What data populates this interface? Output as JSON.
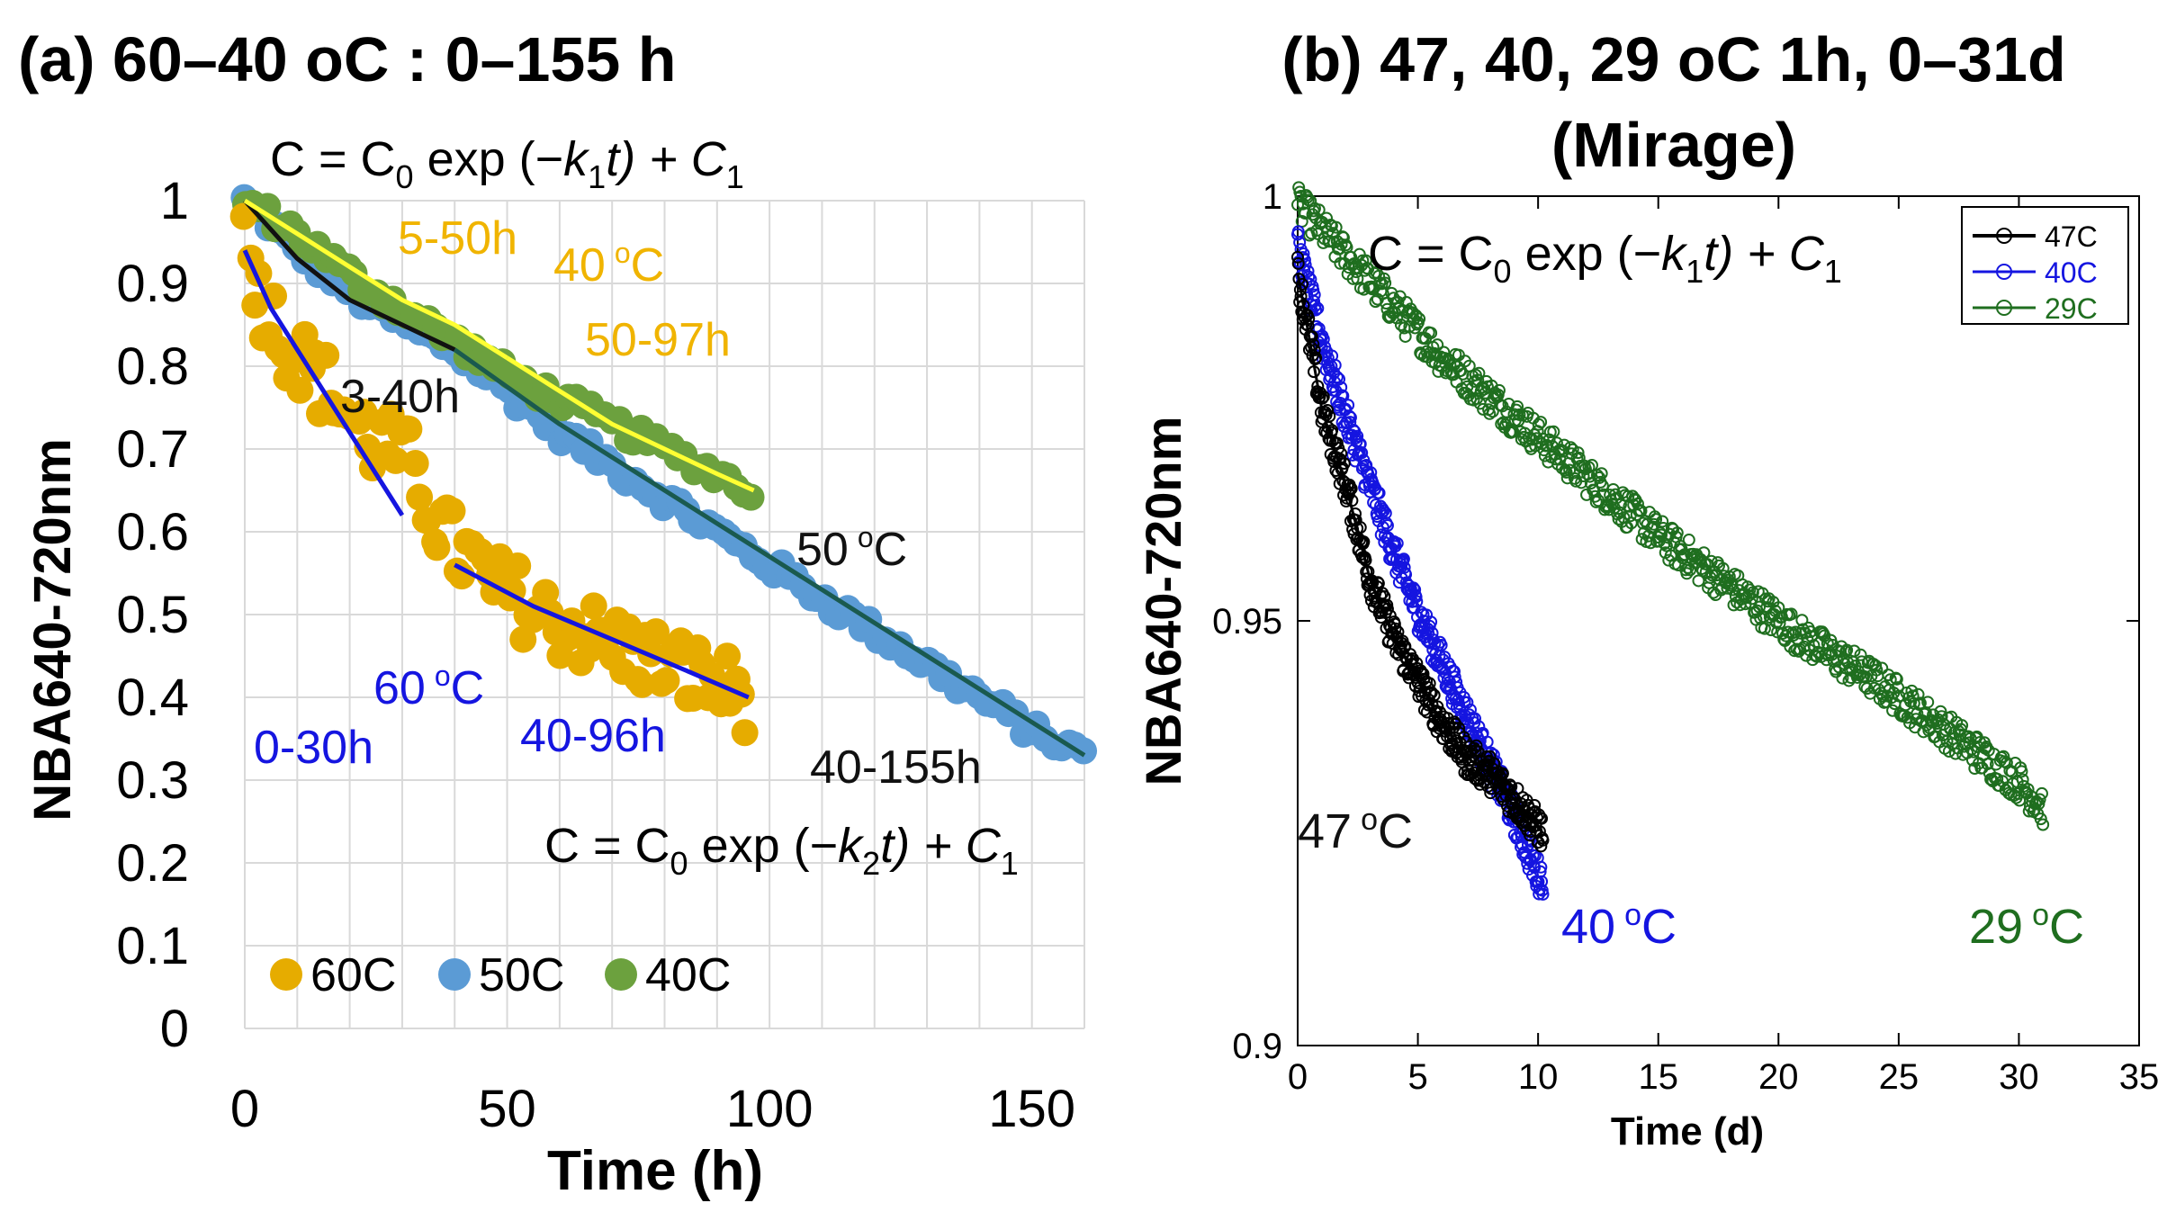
{
  "chart_data": [
    {
      "type": "scatter",
      "title": "(a) 60–40 oC : 0–155 h",
      "xlabel": "Time (h)",
      "ylabel": "NBA640-720nm",
      "xlim": [
        0,
        160
      ],
      "ylim": [
        0,
        1
      ],
      "xticks": [
        "0",
        "50",
        "100",
        "150"
      ],
      "yticks": [
        "0",
        "0.1",
        "0.2",
        "0.3",
        "0.4",
        "0.5",
        "0.6",
        "0.7",
        "0.8",
        "0.9",
        "1"
      ],
      "grid": true,
      "legend_position": "bottom-left",
      "series": [
        {
          "name": "60C",
          "color": "#e6ac00",
          "x": [
            0,
            4,
            8,
            12,
            16,
            20,
            24,
            28,
            32,
            36,
            40,
            44,
            48,
            52,
            56,
            60,
            64,
            68,
            72,
            76,
            80,
            84,
            88,
            92,
            96
          ],
          "y": [
            0.95,
            0.87,
            0.83,
            0.8,
            0.77,
            0.74,
            0.71,
            0.7,
            0.68,
            0.62,
            0.58,
            0.56,
            0.53,
            0.52,
            0.5,
            0.49,
            0.48,
            0.47,
            0.46,
            0.45,
            0.44,
            0.43,
            0.42,
            0.41,
            0.4
          ]
        },
        {
          "name": "50C",
          "color": "#5b9bd5",
          "x": [
            0,
            10,
            20,
            30,
            40,
            50,
            60,
            70,
            80,
            90,
            100,
            110,
            120,
            130,
            140,
            150,
            160
          ],
          "y": [
            1.0,
            0.94,
            0.89,
            0.85,
            0.82,
            0.77,
            0.72,
            0.68,
            0.64,
            0.6,
            0.56,
            0.52,
            0.48,
            0.44,
            0.4,
            0.36,
            0.33
          ]
        },
        {
          "name": "40C",
          "color": "#6ca13e",
          "x": [
            0,
            10,
            20,
            30,
            40,
            50,
            60,
            70,
            80,
            90,
            97
          ],
          "y": [
            1.0,
            0.96,
            0.91,
            0.87,
            0.83,
            0.79,
            0.76,
            0.73,
            0.7,
            0.67,
            0.65
          ]
        }
      ],
      "fits": [
        {
          "label": "0-30h",
          "color": "#1515e0",
          "x": [
            0,
            5,
            10,
            15,
            20,
            25,
            30
          ],
          "y": [
            0.94,
            0.87,
            0.82,
            0.77,
            0.72,
            0.67,
            0.62
          ]
        },
        {
          "label": "40-96h",
          "color": "#1515e0",
          "x": [
            40,
            55,
            70,
            85,
            96
          ],
          "y": [
            0.56,
            0.51,
            0.47,
            0.43,
            0.4
          ]
        },
        {
          "label": "3-40h",
          "color": "#111111",
          "x": [
            0,
            10,
            20,
            30,
            40
          ],
          "y": [
            1.0,
            0.93,
            0.88,
            0.85,
            0.82
          ]
        },
        {
          "label": "40-155h",
          "color": "#1a5a4f",
          "x": [
            40,
            60,
            80,
            100,
            120,
            140,
            160
          ],
          "y": [
            0.82,
            0.73,
            0.65,
            0.57,
            0.49,
            0.41,
            0.33
          ]
        },
        {
          "label": "5-50h",
          "color": "#ffff33",
          "x": [
            0,
            10,
            20,
            30,
            40,
            50
          ],
          "y": [
            1.0,
            0.96,
            0.92,
            0.88,
            0.85,
            0.81
          ]
        },
        {
          "label": "50-97h",
          "color": "#ffff33",
          "x": [
            50,
            60,
            70,
            80,
            90,
            97
          ],
          "y": [
            0.81,
            0.77,
            0.73,
            0.7,
            0.67,
            0.65
          ]
        }
      ],
      "annotations": [
        {
          "text": "C = C",
          "sub": "0",
          "rest": " exp (−",
          "k": "k",
          "ksub": "1",
          "tail": "t) + C",
          "tailsub": "1"
        },
        {
          "text": "C = C",
          "sub": "0",
          "rest": " exp (−",
          "k": "k",
          "ksub": "2",
          "tail": "t) + C",
          "tailsub": "1"
        }
      ],
      "labels": {
        "t5_50": "5-50h",
        "t40": "40",
        "t40unit": "C",
        "t50_97": "50-97h",
        "t3_40": "3-40h",
        "t50": "50",
        "t50unit": "C",
        "t60": "60",
        "t60unit": "C",
        "t0_30": "0-30h",
        "t40_96": "40-96h",
        "t40_155": "40-155h",
        "degree": "o"
      }
    },
    {
      "type": "scatter",
      "title_line1": "(b) 47, 40, 29 oC 1h, 0–31d",
      "title_line2": "(Mirage)",
      "xlabel": "Time (d)",
      "ylabel": "NBA640-720nm",
      "xlim": [
        0,
        35
      ],
      "ylim": [
        0.9,
        1
      ],
      "xticks": [
        "0",
        "5",
        "10",
        "15",
        "20",
        "25",
        "30",
        "35"
      ],
      "yticks": [
        "0.9",
        "0.95",
        "1"
      ],
      "grid": false,
      "legend_position": "top-right",
      "series": [
        {
          "name": "47C",
          "color": "#000000",
          "x0": 0,
          "x1": 10.2,
          "y_points": [
            [
              0,
              0.991
            ],
            [
              1,
              0.975
            ],
            [
              2,
              0.966
            ],
            [
              3,
              0.955
            ],
            [
              4,
              0.948
            ],
            [
              5,
              0.943
            ],
            [
              6,
              0.938
            ],
            [
              7,
              0.934
            ],
            [
              8,
              0.932
            ],
            [
              9,
              0.929
            ],
            [
              10.2,
              0.925
            ]
          ]
        },
        {
          "name": "40C",
          "color": "#1515e0",
          "x0": 0,
          "x1": 10.2,
          "y_points": [
            [
              0,
              0.994
            ],
            [
              1,
              0.983
            ],
            [
              2,
              0.974
            ],
            [
              3,
              0.966
            ],
            [
              4,
              0.958
            ],
            [
              5,
              0.951
            ],
            [
              6,
              0.945
            ],
            [
              7,
              0.939
            ],
            [
              8,
              0.933
            ],
            [
              9,
              0.927
            ],
            [
              10,
              0.92
            ]
          ]
        },
        {
          "name": "29C",
          "color": "#1f6e1f",
          "x0": 0,
          "x1": 31,
          "y_points": [
            [
              0,
              0.999
            ],
            [
              3,
              0.99
            ],
            [
              6,
              0.981
            ],
            [
              9,
              0.974
            ],
            [
              12,
              0.967
            ],
            [
              15,
              0.96
            ],
            [
              18,
              0.954
            ],
            [
              21,
              0.948
            ],
            [
              24,
              0.943
            ],
            [
              27,
              0.937
            ],
            [
              30,
              0.931
            ],
            [
              31,
              0.928
            ]
          ]
        }
      ],
      "annotation": {
        "text": "C = C",
        "sub": "0",
        "rest": " exp (−",
        "k": "k",
        "ksub": "1",
        "tail": "t) + C",
        "tailsub": "1"
      },
      "labels": {
        "t47": "47",
        "t47unit": "C",
        "t40": "40",
        "t40unit": "C",
        "t29": "29",
        "t29unit": "C",
        "degree": "o"
      }
    }
  ]
}
